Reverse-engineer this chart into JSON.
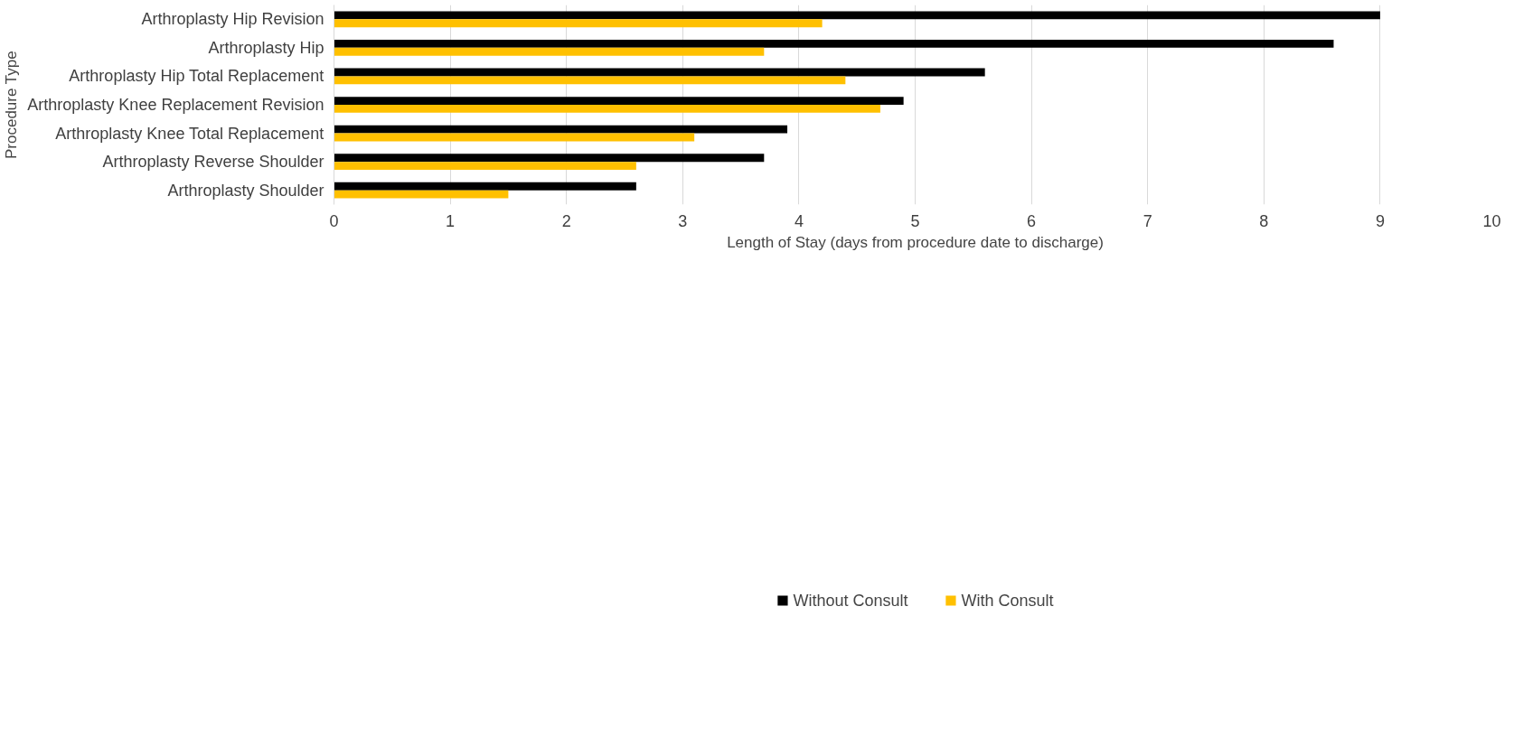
{
  "chart_data": {
    "type": "bar",
    "orientation": "horizontal",
    "xlabel": "Length of Stay (days from procedure date to discharge)",
    "ylabel": "Procedure Type",
    "categories": [
      "Arthroplasty Hip Revision",
      "Arthroplasty Hip",
      "Arthroplasty Hip Total Replacement",
      "Arthroplasty Knee Replacement Revision",
      "Arthroplasty Knee Total Replacement",
      "Arthroplasty Reverse Shoulder",
      "Arthroplasty Shoulder"
    ],
    "series": [
      {
        "name": "Without Consult",
        "color": "#000000",
        "values": [
          9.0,
          8.6,
          5.6,
          4.9,
          3.9,
          3.7,
          2.6
        ]
      },
      {
        "name": "With Consult",
        "color": "#ffc000",
        "values": [
          4.2,
          3.7,
          4.4,
          4.7,
          3.1,
          2.6,
          1.5
        ]
      }
    ],
    "xlim": [
      0,
      10
    ],
    "xticks": [
      0,
      1,
      2,
      3,
      4,
      5,
      6,
      7,
      8,
      9,
      10
    ],
    "grid": "x",
    "legend": "bottom"
  }
}
